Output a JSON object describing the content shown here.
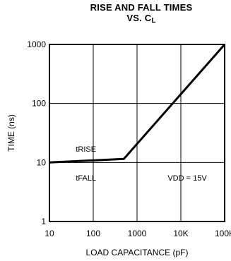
{
  "chart_data": {
    "type": "line",
    "title_line1": "RISE AND FALL TIMES",
    "title_line2_prefix": "VS. C",
    "title_line2_sub": "L",
    "xlabel": "LOAD CAPACITANCE (pF)",
    "ylabel": "TIME (ns)",
    "x_scale": "log",
    "y_scale": "log",
    "xlim": [
      10,
      100000
    ],
    "ylim": [
      1,
      1000
    ],
    "x_ticks": [
      {
        "value": 10,
        "label": "10"
      },
      {
        "value": 100,
        "label": "100"
      },
      {
        "value": 1000,
        "label": "1000"
      },
      {
        "value": 10000,
        "label": "10K"
      },
      {
        "value": 100000,
        "label": "100K"
      }
    ],
    "y_ticks": [
      {
        "value": 1,
        "label": "1"
      },
      {
        "value": 10,
        "label": "10"
      },
      {
        "value": 100,
        "label": "100"
      },
      {
        "value": 1000,
        "label": "1000"
      }
    ],
    "grid": true,
    "series": [
      {
        "name": "",
        "x": [
          10,
          500,
          100000
        ],
        "y": [
          10,
          11.5,
          1000
        ]
      }
    ],
    "annotations": [
      {
        "text": "tRISE",
        "x": 40,
        "y": 17
      },
      {
        "text": "tFALL",
        "x": 40,
        "y": 5.5
      },
      {
        "text": "VDD = 15V",
        "x": 5000,
        "y": 5.5
      }
    ]
  }
}
